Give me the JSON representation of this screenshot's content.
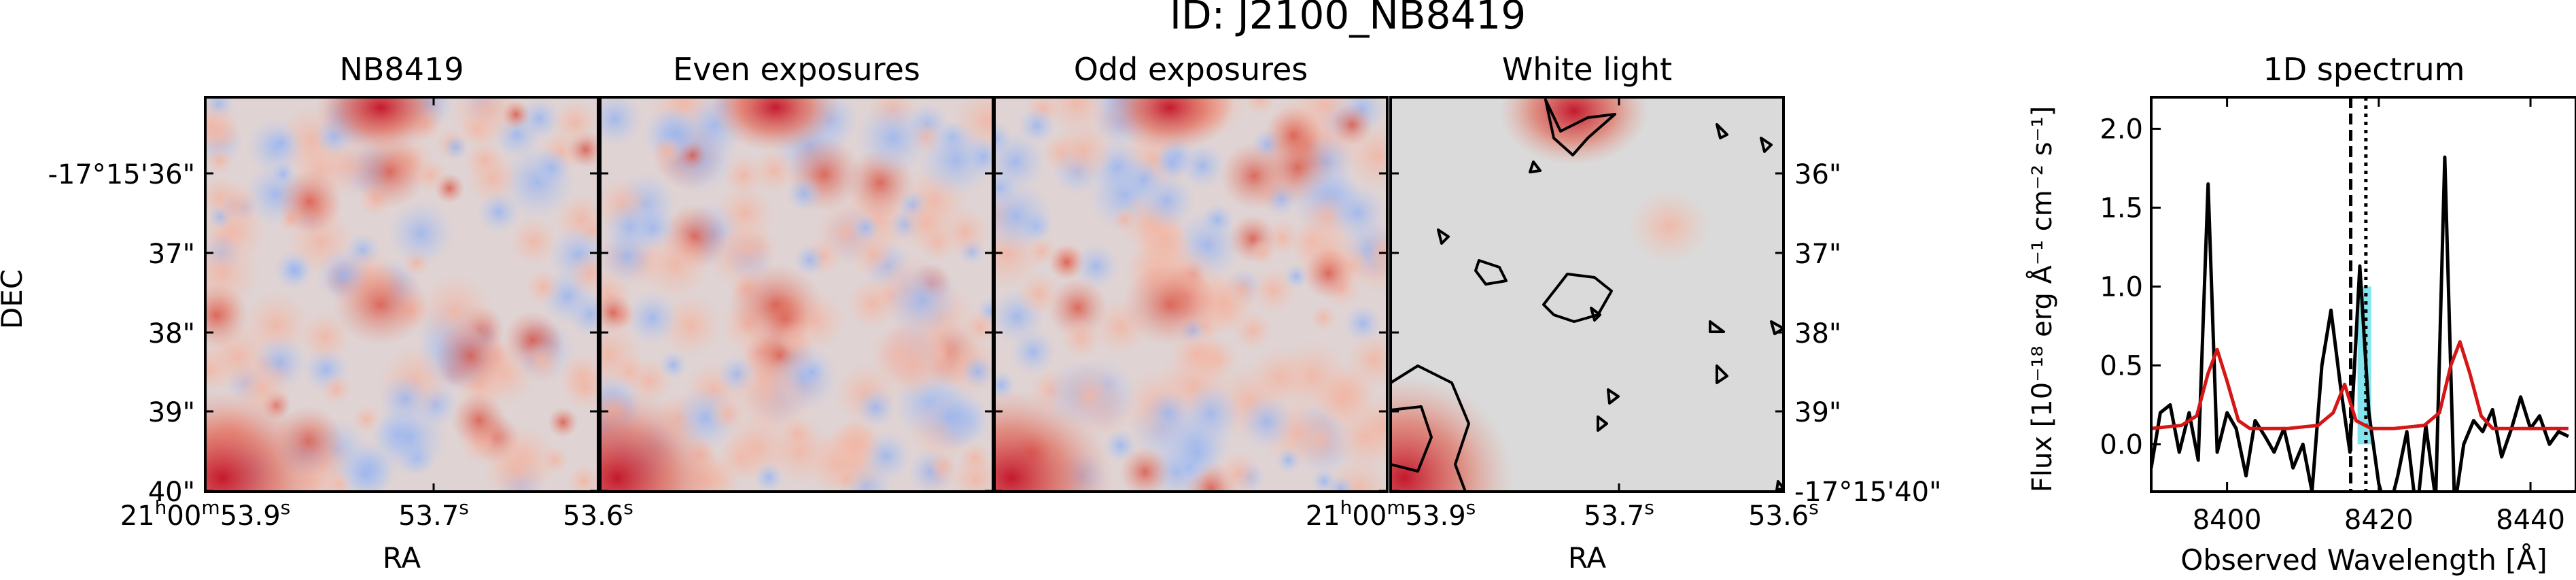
{
  "figure": {
    "title": "ID: J2100_NB8419"
  },
  "panels": [
    {
      "id": "nb",
      "title": "NB8419"
    },
    {
      "id": "even",
      "title": "Even exposures"
    },
    {
      "id": "odd",
      "title": "Odd exposures"
    },
    {
      "id": "white",
      "title": "White light"
    }
  ],
  "image_axes": {
    "ylabel": "DEC",
    "xlabel": "RA",
    "ra_ticks_left": [
      "21h00m53.9s",
      "53.7s",
      "53.6s"
    ],
    "ra_ticks_white": [
      "21h00m53.9s",
      "53.7s",
      "53.6s"
    ],
    "dec_ticks_left": [
      "-17°15'36\"",
      "37\"",
      "38\"",
      "39\"",
      "40\""
    ],
    "dec_ticks_right": [
      "36\"",
      "37\"",
      "38\"",
      "39\"",
      "-17°15'40\""
    ]
  },
  "colors": {
    "cmap_low": "#7f9ee6",
    "cmap_mid": "#dcdcdc",
    "cmap_high": "#c41a2e",
    "spectrum_line": "#000000",
    "model_line": "#d41616",
    "highlight": "#4fd9e6"
  },
  "chart_data": {
    "type": "line",
    "title": "1D spectrum",
    "xlabel": "Observed Wavelength [Å]",
    "ylabel": "Flux [10⁻¹⁸ erg Å⁻¹ cm⁻² s⁻¹]",
    "xlim": [
      8390,
      8446
    ],
    "ylim": [
      -0.3,
      2.2
    ],
    "xticks": [
      8400,
      8420,
      8440
    ],
    "yticks": [
      0.0,
      0.5,
      1.0,
      1.5,
      2.0
    ],
    "vlines": [
      {
        "x": 8416.3,
        "style": "dashed"
      },
      {
        "x": 8418.3,
        "style": "dotted"
      }
    ],
    "highlight": {
      "x": [
        8417.2,
        8419.0
      ]
    },
    "series": [
      {
        "style": "steps",
        "x": [
          8390,
          8391.2,
          8392.5,
          8393.7,
          8395,
          8396.2,
          8397.5,
          8398.7,
          8400,
          8401.2,
          8402.5,
          8403.7,
          8405,
          8406.2,
          8407.5,
          8408.7,
          8410,
          8411.2,
          8412.5,
          8413.7,
          8415,
          8416.2,
          8417.5,
          8418.7,
          8420,
          8421.2,
          8422.5,
          8423.7,
          8425,
          8426.2,
          8427.5,
          8428.7,
          8430,
          8431.2,
          8432.5,
          8433.7,
          8435,
          8436.2,
          8437.5,
          8438.7,
          8440,
          8441.2,
          8442.5,
          8443.7,
          8445
        ],
        "y": [
          -0.15,
          0.2,
          0.25,
          -0.05,
          0.2,
          -0.1,
          1.65,
          -0.05,
          0.2,
          0.1,
          -0.2,
          0.15,
          0.05,
          -0.05,
          0.1,
          -0.15,
          0.0,
          -0.3,
          0.5,
          0.85,
          0.35,
          -0.05,
          1.13,
          0.2,
          -0.25,
          -0.45,
          -0.2,
          0.08,
          -0.45,
          0.12,
          -0.35,
          1.82,
          -0.4,
          0.0,
          0.15,
          0.08,
          0.22,
          -0.08,
          0.1,
          0.3,
          0.1,
          0.18,
          0.0,
          0.08,
          0.05
        ]
      },
      {
        "style": "line",
        "x": [
          8390,
          8394,
          8396,
          8397.5,
          8398.7,
          8400,
          8401.5,
          8403,
          8408,
          8412,
          8414,
          8415.5,
          8417,
          8419,
          8422,
          8426,
          8428,
          8429.5,
          8430.7,
          8432,
          8433.5,
          8435,
          8440,
          8445
        ],
        "y": [
          0.1,
          0.12,
          0.18,
          0.45,
          0.6,
          0.4,
          0.15,
          0.1,
          0.1,
          0.12,
          0.2,
          0.38,
          0.15,
          0.1,
          0.1,
          0.12,
          0.2,
          0.5,
          0.65,
          0.45,
          0.18,
          0.1,
          0.1,
          0.1
        ]
      }
    ]
  }
}
